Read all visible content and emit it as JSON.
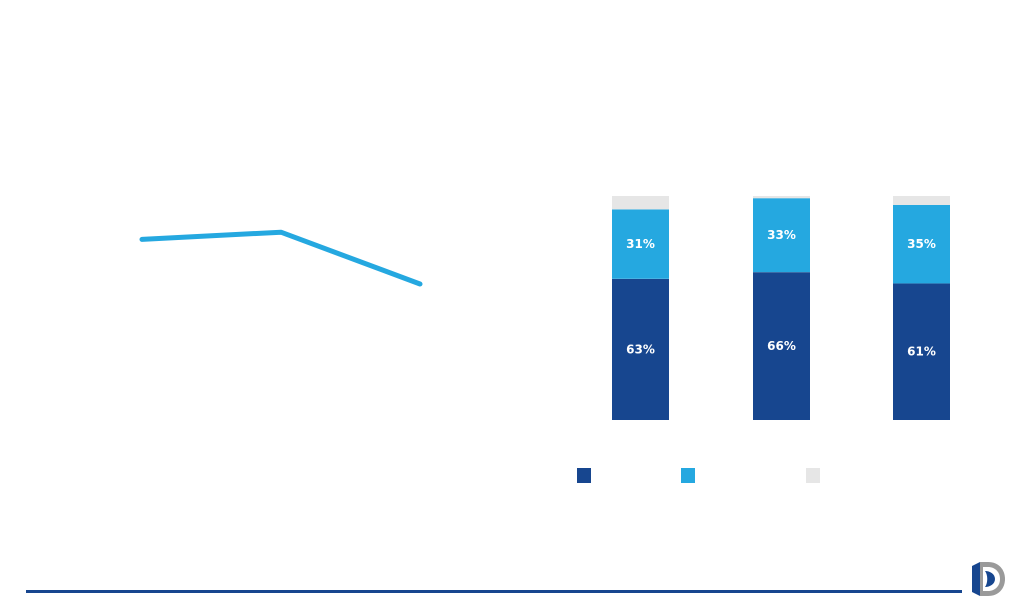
{
  "colors": {
    "dark_blue": "#17468f",
    "light_blue": "#25a8e0",
    "grey": "#e6e6e6",
    "footer_rule": "#17468f"
  },
  "chart_data": [
    {
      "type": "line",
      "x": [
        1,
        2,
        3
      ],
      "series": [
        {
          "values": [
            0.62,
            0.72,
            0.0
          ],
          "color": "#25a8e0"
        }
      ],
      "ylim": [
        -1.5,
        1.0
      ],
      "grid": false
    },
    {
      "type": "bar",
      "stacked": true,
      "categories": [
        "",
        "",
        ""
      ],
      "series": [
        {
          "color": "#17468f",
          "values": [
            63,
            66,
            61
          ],
          "labels": [
            "63%",
            "66%",
            "61%"
          ]
        },
        {
          "color": "#25a8e0",
          "values": [
            31,
            33,
            35
          ],
          "labels": [
            "31%",
            "33%",
            "35%"
          ]
        },
        {
          "color": "#e6e6e6",
          "values": [
            6,
            1,
            4
          ],
          "labels": [
            "",
            "",
            ""
          ]
        }
      ],
      "ylim": [
        0,
        100
      ],
      "legend": {
        "position": "bottom",
        "entries": 3
      },
      "grid": false
    }
  ],
  "logo": {
    "icon": "d-logo-icon"
  }
}
